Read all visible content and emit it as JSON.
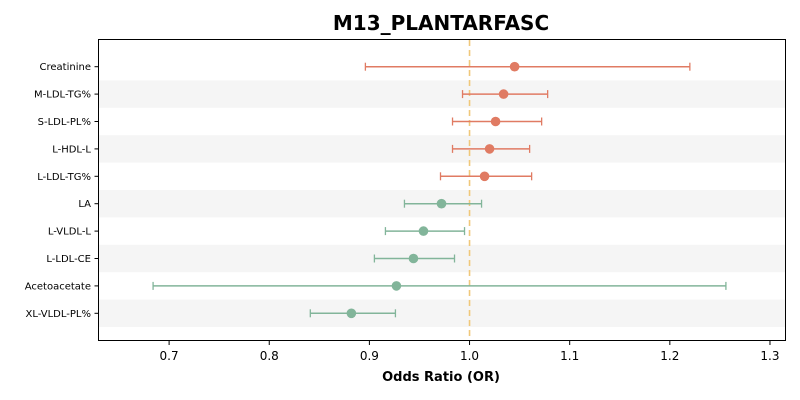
{
  "chart_data": {
    "type": "scatter",
    "subtype": "forest-plot",
    "title": "M13_PLANTARFASC",
    "xlabel": "Odds Ratio (OR)",
    "ylabel": "",
    "xlim": [
      0.63,
      1.315
    ],
    "xticks": [
      0.7,
      0.8,
      0.9,
      1.0,
      1.1,
      1.2,
      1.3
    ],
    "xtick_labels": [
      "0.7",
      "0.8",
      "0.9",
      "1.0",
      "1.1",
      "1.2",
      "1.3"
    ],
    "reference_line": 1.0,
    "reference_line_style": "dashed",
    "grid": false,
    "alternating_row_shading": true,
    "colors": {
      "positive": "#E07B63",
      "negative": "#82B59A",
      "reference_line": "#F0C87A",
      "row_shade": "#F5F5F5"
    },
    "categories": [
      "Creatinine",
      "M-LDL-TG%",
      "S-LDL-PL%",
      "L-HDL-L",
      "L-LDL-TG%",
      "LA",
      "L-VLDL-L",
      "L-LDL-CE",
      "Acetoacetate",
      "XL-VLDL-PL%"
    ],
    "estimates": [
      {
        "label": "Creatinine",
        "or": 1.045,
        "lower": 0.896,
        "upper": 1.22,
        "direction": "positive"
      },
      {
        "label": "M-LDL-TG%",
        "or": 1.034,
        "lower": 0.993,
        "upper": 1.078,
        "direction": "positive"
      },
      {
        "label": "S-LDL-PL%",
        "or": 1.026,
        "lower": 0.983,
        "upper": 1.072,
        "direction": "positive"
      },
      {
        "label": "L-HDL-L",
        "or": 1.02,
        "lower": 0.983,
        "upper": 1.06,
        "direction": "positive"
      },
      {
        "label": "L-LDL-TG%",
        "or": 1.015,
        "lower": 0.971,
        "upper": 1.062,
        "direction": "positive"
      },
      {
        "label": "LA",
        "or": 0.972,
        "lower": 0.935,
        "upper": 1.012,
        "direction": "negative"
      },
      {
        "label": "L-VLDL-L",
        "or": 0.954,
        "lower": 0.916,
        "upper": 0.995,
        "direction": "negative"
      },
      {
        "label": "L-LDL-CE",
        "or": 0.944,
        "lower": 0.905,
        "upper": 0.985,
        "direction": "negative"
      },
      {
        "label": "Acetoacetate",
        "or": 0.927,
        "lower": 0.684,
        "upper": 1.256,
        "direction": "negative"
      },
      {
        "label": "XL-VLDL-PL%",
        "or": 0.882,
        "lower": 0.841,
        "upper": 0.926,
        "direction": "negative"
      }
    ]
  }
}
